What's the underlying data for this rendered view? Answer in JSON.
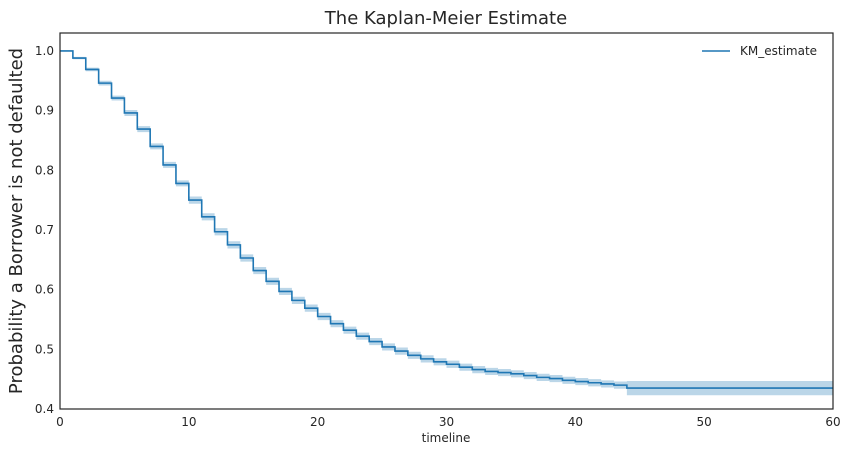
{
  "chart_data": {
    "type": "line",
    "title": "The Kaplan-Meier Estimate",
    "xlabel": "timeline",
    "ylabel": "Probability a Borrower is not defaulted",
    "xlim": [
      0,
      60
    ],
    "ylim": [
      0.4,
      1.03
    ],
    "xticks": [
      0,
      10,
      20,
      30,
      40,
      50,
      60
    ],
    "yticks": [
      0.4,
      0.5,
      0.6,
      0.7,
      0.8,
      0.9,
      1.0
    ],
    "grid": false,
    "legend_position": "top-right",
    "series": [
      {
        "name": "KM_estimate",
        "color": "#1f77b4",
        "ci_color": "#1f77b4",
        "drawstyle": "steps-post",
        "x": [
          0,
          1,
          2,
          3,
          4,
          5,
          6,
          7,
          8,
          9,
          10,
          11,
          12,
          13,
          14,
          15,
          16,
          17,
          18,
          19,
          20,
          21,
          22,
          23,
          24,
          25,
          26,
          27,
          28,
          29,
          30,
          31,
          32,
          33,
          34,
          35,
          36,
          37,
          38,
          39,
          40,
          41,
          42,
          43,
          44,
          60
        ],
        "y": [
          1.0,
          0.988,
          0.969,
          0.946,
          0.921,
          0.896,
          0.869,
          0.84,
          0.809,
          0.778,
          0.75,
          0.722,
          0.697,
          0.675,
          0.653,
          0.632,
          0.614,
          0.597,
          0.582,
          0.569,
          0.555,
          0.543,
          0.532,
          0.522,
          0.513,
          0.504,
          0.497,
          0.49,
          0.484,
          0.479,
          0.475,
          0.47,
          0.466,
          0.463,
          0.461,
          0.459,
          0.456,
          0.453,
          0.451,
          0.448,
          0.446,
          0.444,
          0.442,
          0.44,
          0.435,
          0.435
        ],
        "ci_halfwidth": [
          0.0,
          0.002,
          0.003,
          0.004,
          0.004,
          0.005,
          0.005,
          0.005,
          0.005,
          0.005,
          0.006,
          0.006,
          0.006,
          0.006,
          0.006,
          0.006,
          0.006,
          0.006,
          0.006,
          0.006,
          0.006,
          0.006,
          0.006,
          0.006,
          0.006,
          0.006,
          0.006,
          0.006,
          0.006,
          0.006,
          0.006,
          0.006,
          0.006,
          0.006,
          0.006,
          0.006,
          0.006,
          0.006,
          0.006,
          0.006,
          0.006,
          0.006,
          0.006,
          0.006,
          0.012,
          0.012
        ]
      }
    ]
  }
}
